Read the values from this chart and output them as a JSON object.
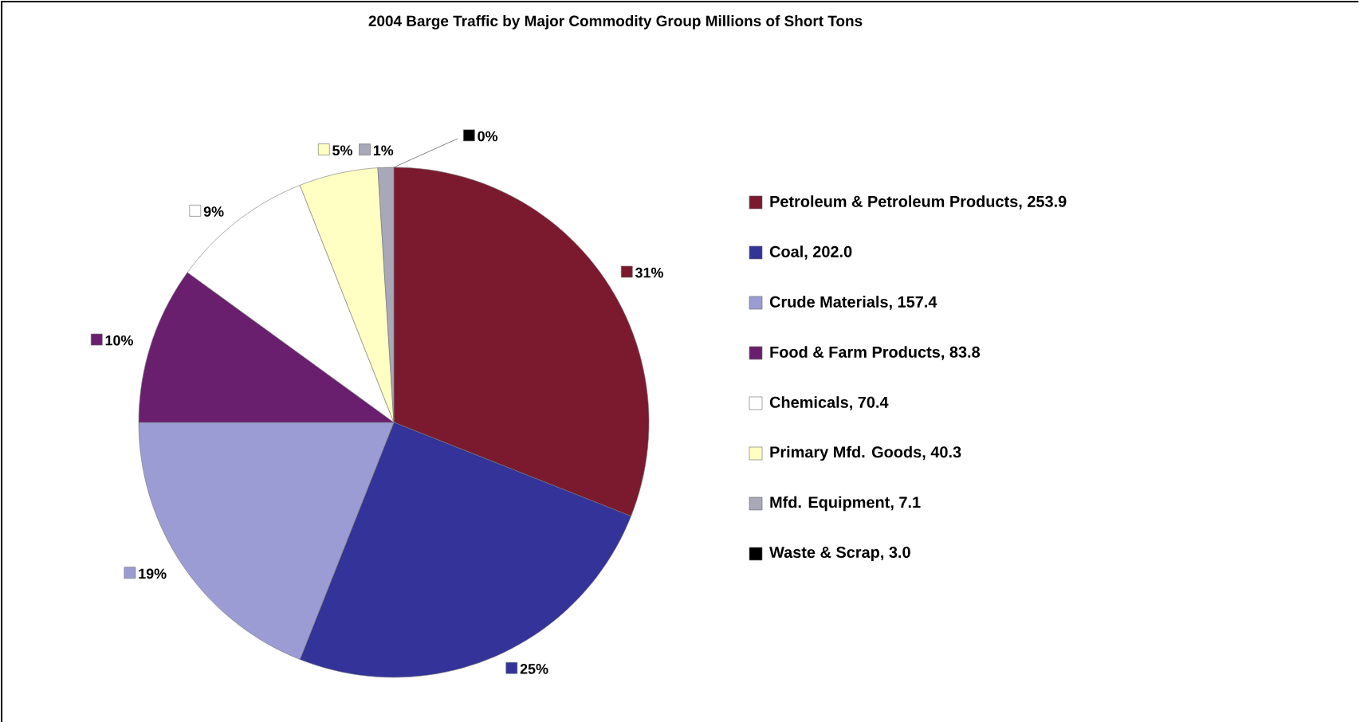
{
  "chart_data": {
    "type": "pie",
    "title": "2004  Barge Traffic by Major Commodity Group Millions of Short Tons",
    "categories": [
      "Petroleum & Petroleum Products, 253.9",
      "Coal, 202.0",
      "Crude Materials, 157.4",
      "Food & Farm Products, 83.8",
      "Chemicals, 70.4",
      "Primary Mfd. Goods, 40.3",
      "Mfd. Equipment, 7.1",
      "Waste & Scrap, 3.0"
    ],
    "values": [
      31,
      25,
      19,
      10,
      9,
      5,
      1,
      0
    ],
    "value_labels": [
      "31%",
      "25%",
      "19%",
      "10%",
      "9%",
      "5%",
      "1%",
      "0%"
    ],
    "colors": [
      "#7b1a2e",
      "#33339a",
      "#9c9cd4",
      "#6a1f6e",
      "#ffffff",
      "#ffffc4",
      "#a8a8b8",
      "#000000"
    ],
    "legend": "right"
  }
}
